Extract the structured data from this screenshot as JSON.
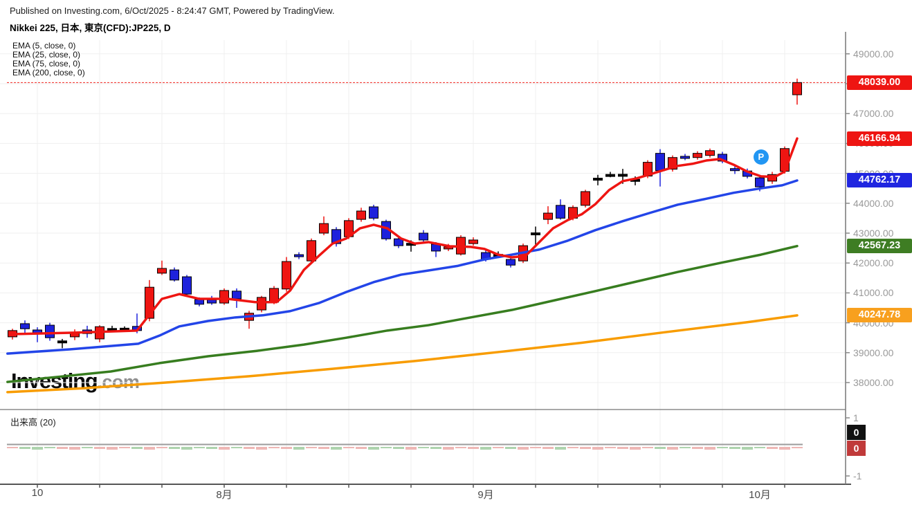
{
  "header": {
    "published_line": "Published on Investing.com, 6/Oct/2025 - 8:24:47 GMT, Powered by TradingView."
  },
  "chart_title": "Nikkei 225, 日本, 東京(CFD):JP225, D",
  "legend": {
    "items": [
      "EMA (5, close, 0)",
      "EMA (25, close, 0)",
      "EMA (75, close, 0)",
      "EMA (200, close, 0)"
    ]
  },
  "logo": {
    "brand": "Investing",
    "suffix": ".com"
  },
  "marker": {
    "label": "P",
    "color": "#2196f3",
    "index": 60.1,
    "price": 45550
  },
  "price_scale": {
    "tick_values": [
      49000,
      48000,
      47000,
      46000,
      45000,
      44000,
      43000,
      42000,
      41000,
      40000,
      39000,
      38000
    ],
    "badges": {
      "last": {
        "text": "48039.00",
        "value": 48039.0,
        "color": "#ee1512"
      },
      "ema5": {
        "text": "46166.94",
        "value": 46166.94,
        "color": "#ee1512"
      },
      "ema25": {
        "text": "44762.17",
        "value": 44762.17,
        "color": "#2026e0"
      },
      "ema75": {
        "text": "42567.23",
        "value": 42567.23,
        "color": "#3e7d23"
      },
      "ema200": {
        "text": "40247.78",
        "value": 40247.78,
        "color": "#f8a01e"
      }
    }
  },
  "volume_panel": {
    "label": "出来高 (20)",
    "axis_ticks": [
      {
        "text": "1",
        "value": 1
      },
      {
        "text": "-1",
        "value": -1
      }
    ],
    "ma_badge": {
      "text": "0",
      "color": "#111111"
    },
    "current_badge": {
      "text": "0",
      "color": "#c03a3a"
    }
  },
  "x_axis": {
    "labels": [
      {
        "text": "10",
        "index": 2
      },
      {
        "text": "8月",
        "index": 17
      },
      {
        "text": "9月",
        "index": 38
      },
      {
        "text": "10月",
        "index": 60
      }
    ]
  },
  "chart_data": {
    "type": "candlestick",
    "instrument": "JP225",
    "timeframe": "D",
    "title": "Nikkei 225, 日本, 東京(CFD):JP225, D",
    "price_axis_range_visible": [
      37100,
      49400
    ],
    "grid": true,
    "up_color": "#ee1512",
    "down_color": "#1e22dc",
    "volume_up_color": "#eeb7b5",
    "volume_down_color": "#aed3ae",
    "last_price_line": 48039.0,
    "candles": [
      [
        39530,
        39800,
        39440,
        39740
      ],
      [
        39970,
        40080,
        39620,
        39800
      ],
      [
        39760,
        39850,
        39350,
        39640
      ],
      [
        39920,
        40000,
        39400,
        39500
      ],
      [
        39390,
        39460,
        39150,
        39395
      ],
      [
        39530,
        39780,
        39420,
        39690
      ],
      [
        39760,
        39900,
        39500,
        39640
      ],
      [
        39460,
        39920,
        39350,
        39870
      ],
      [
        39800,
        39900,
        39700,
        39810
      ],
      [
        39810,
        39880,
        39720,
        39820
      ],
      [
        39880,
        40310,
        39650,
        39740
      ],
      [
        40150,
        41430,
        40050,
        41190
      ],
      [
        41660,
        42080,
        41600,
        41820
      ],
      [
        41770,
        41850,
        41380,
        41430
      ],
      [
        41540,
        41600,
        40900,
        40960
      ],
      [
        40780,
        40850,
        40550,
        40620
      ],
      [
        40770,
        40900,
        40600,
        40660
      ],
      [
        40660,
        41150,
        40600,
        41080
      ],
      [
        41060,
        41150,
        40500,
        40800
      ],
      [
        40080,
        40400,
        39800,
        40320
      ],
      [
        40430,
        40900,
        40350,
        40850
      ],
      [
        40690,
        41230,
        40620,
        41150
      ],
      [
        41130,
        42200,
        41040,
        42050
      ],
      [
        42280,
        42360,
        42130,
        42210
      ],
      [
        42070,
        42820,
        41980,
        42750
      ],
      [
        43000,
        43560,
        42930,
        43320
      ],
      [
        43120,
        43200,
        42550,
        42650
      ],
      [
        42880,
        43500,
        42800,
        43420
      ],
      [
        43460,
        43850,
        43380,
        43740
      ],
      [
        43880,
        43950,
        43430,
        43500
      ],
      [
        43390,
        43450,
        42750,
        42810
      ],
      [
        42810,
        42900,
        42500,
        42580
      ],
      [
        42650,
        42760,
        42380,
        42660
      ],
      [
        43000,
        43100,
        42700,
        42770
      ],
      [
        42630,
        42700,
        42200,
        42400
      ],
      [
        42470,
        42640,
        42400,
        42540
      ],
      [
        42300,
        42930,
        42250,
        42860
      ],
      [
        42650,
        42860,
        42580,
        42770
      ],
      [
        42350,
        42450,
        42050,
        42120
      ],
      [
        42280,
        42390,
        42180,
        42290
      ],
      [
        42120,
        42200,
        41850,
        41930
      ],
      [
        42070,
        42650,
        42000,
        42580
      ],
      [
        42995,
        43220,
        42600,
        43010
      ],
      [
        43460,
        43900,
        43300,
        43670
      ],
      [
        43930,
        44130,
        43450,
        43500
      ],
      [
        43500,
        43930,
        43430,
        43860
      ],
      [
        43930,
        44450,
        43860,
        44390
      ],
      [
        44825,
        44950,
        44600,
        44840
      ],
      [
        44950,
        45050,
        44870,
        44965
      ],
      [
        44955,
        45150,
        44650,
        44970
      ],
      [
        44785,
        44900,
        44600,
        44800
      ],
      [
        44910,
        45440,
        44840,
        45370
      ],
      [
        45670,
        45810,
        44560,
        45090
      ],
      [
        45140,
        45600,
        45060,
        45530
      ],
      [
        45570,
        45650,
        45440,
        45535
      ],
      [
        45530,
        45740,
        45460,
        45670
      ],
      [
        45600,
        45830,
        45530,
        45760
      ],
      [
        45640,
        45720,
        45340,
        45410
      ],
      [
        45160,
        45260,
        44980,
        45090
      ],
      [
        45080,
        45160,
        44830,
        44900
      ],
      [
        44850,
        44950,
        44400,
        44550
      ],
      [
        44740,
        45050,
        44650,
        44960
      ],
      [
        45070,
        45900,
        44990,
        45830
      ],
      [
        47630,
        48170,
        47300,
        48039
      ]
    ],
    "emas": [
      {
        "name": "EMA 5",
        "period": 5,
        "color": "#ee1512",
        "points": [
          [
            0,
            39620
          ],
          [
            5,
            39670
          ],
          [
            10,
            39740
          ],
          [
            11,
            40270
          ],
          [
            12,
            40800
          ],
          [
            13.4,
            40960
          ],
          [
            15,
            40800
          ],
          [
            17.3,
            40800
          ],
          [
            19.5,
            40690
          ],
          [
            21.2,
            40690
          ],
          [
            22.3,
            41080
          ],
          [
            23.4,
            41770
          ],
          [
            24.6,
            42240
          ],
          [
            25.7,
            42650
          ],
          [
            26.8,
            42820
          ],
          [
            27.9,
            43160
          ],
          [
            29,
            43280
          ],
          [
            30.1,
            43160
          ],
          [
            31.2,
            42820
          ],
          [
            32.3,
            42650
          ],
          [
            33.4,
            42700
          ],
          [
            35.1,
            42560
          ],
          [
            36.8,
            42540
          ],
          [
            37.9,
            42470
          ],
          [
            39,
            42280
          ],
          [
            40.1,
            42190
          ],
          [
            41.2,
            42240
          ],
          [
            42.3,
            42700
          ],
          [
            43.4,
            43160
          ],
          [
            44.6,
            43440
          ],
          [
            45.7,
            43630
          ],
          [
            46.8,
            43970
          ],
          [
            47.9,
            44440
          ],
          [
            49,
            44740
          ],
          [
            50.1,
            44830
          ],
          [
            51.2,
            44970
          ],
          [
            52.3,
            45110
          ],
          [
            53.4,
            45250
          ],
          [
            54.6,
            45320
          ],
          [
            55.7,
            45430
          ],
          [
            56.8,
            45480
          ],
          [
            57.9,
            45290
          ],
          [
            59,
            45060
          ],
          [
            60.1,
            44900
          ],
          [
            61.2,
            44880
          ],
          [
            62,
            45060
          ],
          [
            63,
            46166.94
          ]
        ]
      },
      {
        "name": "EMA 25",
        "period": 25,
        "color": "#2345e8",
        "points": [
          [
            -0.4,
            38970
          ],
          [
            4.6,
            39110
          ],
          [
            10.1,
            39300
          ],
          [
            11.8,
            39570
          ],
          [
            13.4,
            39880
          ],
          [
            15.7,
            40060
          ],
          [
            17.9,
            40180
          ],
          [
            20.1,
            40250
          ],
          [
            22.3,
            40390
          ],
          [
            24.6,
            40660
          ],
          [
            26.8,
            41030
          ],
          [
            29,
            41360
          ],
          [
            31.2,
            41610
          ],
          [
            33.4,
            41750
          ],
          [
            35.7,
            41900
          ],
          [
            37.9,
            42120
          ],
          [
            40.1,
            42280
          ],
          [
            42.3,
            42450
          ],
          [
            44.6,
            42750
          ],
          [
            46.8,
            43100
          ],
          [
            49,
            43400
          ],
          [
            51.2,
            43680
          ],
          [
            53.4,
            43950
          ],
          [
            55.7,
            44150
          ],
          [
            57.9,
            44350
          ],
          [
            60.1,
            44500
          ],
          [
            61.8,
            44600
          ],
          [
            63,
            44762.17
          ]
        ]
      },
      {
        "name": "EMA 75",
        "period": 75,
        "color": "#377d1f",
        "points": [
          [
            -0.4,
            38020
          ],
          [
            4.6,
            38230
          ],
          [
            7.9,
            38370
          ],
          [
            11.8,
            38650
          ],
          [
            15.7,
            38880
          ],
          [
            19.6,
            39060
          ],
          [
            23.4,
            39270
          ],
          [
            26.8,
            39500
          ],
          [
            30.1,
            39740
          ],
          [
            33.4,
            39920
          ],
          [
            36.8,
            40180
          ],
          [
            40.1,
            40430
          ],
          [
            43.4,
            40740
          ],
          [
            46.8,
            41060
          ],
          [
            50.1,
            41380
          ],
          [
            53.4,
            41700
          ],
          [
            56.8,
            42000
          ],
          [
            60.1,
            42280
          ],
          [
            63,
            42567.23
          ]
        ]
      },
      {
        "name": "EMA 200",
        "period": 200,
        "color": "#f89c00",
        "points": [
          [
            -0.4,
            37680
          ],
          [
            5.7,
            37810
          ],
          [
            12.3,
            38000
          ],
          [
            19,
            38210
          ],
          [
            25.7,
            38460
          ],
          [
            32.3,
            38720
          ],
          [
            39,
            39020
          ],
          [
            45.7,
            39330
          ],
          [
            52.3,
            39680
          ],
          [
            59,
            40020
          ],
          [
            63,
            40247.78
          ]
        ]
      }
    ]
  }
}
